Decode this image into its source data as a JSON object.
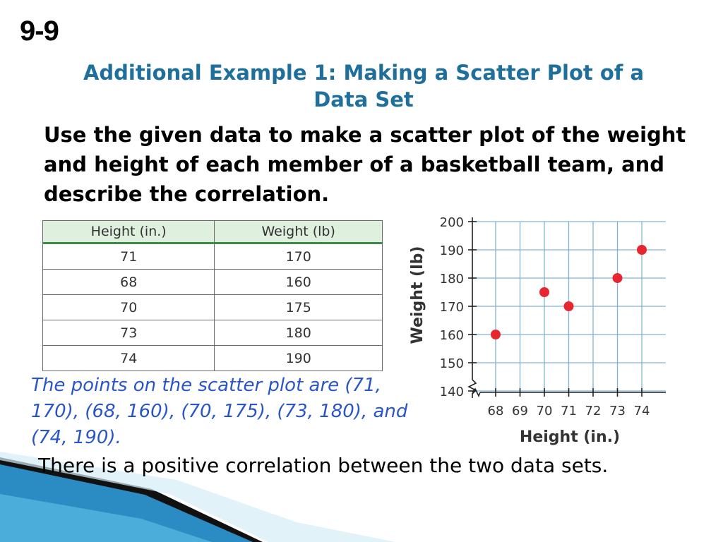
{
  "lesson": "9-9",
  "title_line1": "Additional Example 1: Making a Scatter Plot of a",
  "title_line2": "Data Set",
  "problem": "Use the given data to make a scatter plot of the weight and height of each member of a basketball team, and describe the correlation.",
  "table": {
    "headers": [
      "Height (in.)",
      "Weight (lb)"
    ],
    "rows": [
      [
        "71",
        "170"
      ],
      [
        "68",
        "160"
      ],
      [
        "70",
        "175"
      ],
      [
        "73",
        "180"
      ],
      [
        "74",
        "190"
      ]
    ]
  },
  "points_text": "The points on the scatter plot are (71, 170), (68, 160), (70, 175), (73, 180), and (74, 190).",
  "conclusion": "There is a positive correlation between the two data sets.",
  "colors": {
    "title": "#1f6f9c",
    "points_text": "#2a55c9",
    "marker": "#e8262f",
    "grid": "#7fb3d5"
  },
  "chart_data": {
    "type": "scatter",
    "x": [
      71,
      68,
      70,
      73,
      74
    ],
    "y": [
      170,
      160,
      175,
      180,
      190
    ],
    "xlabel": "Height (in.)",
    "ylabel": "Weight (lb)",
    "xticks": [
      68,
      69,
      70,
      71,
      72,
      73,
      74
    ],
    "yticks": [
      140,
      150,
      160,
      170,
      180,
      190,
      200
    ],
    "xlim": [
      67,
      74
    ],
    "ylim": [
      140,
      200
    ],
    "grid": true,
    "axis_break": true
  }
}
